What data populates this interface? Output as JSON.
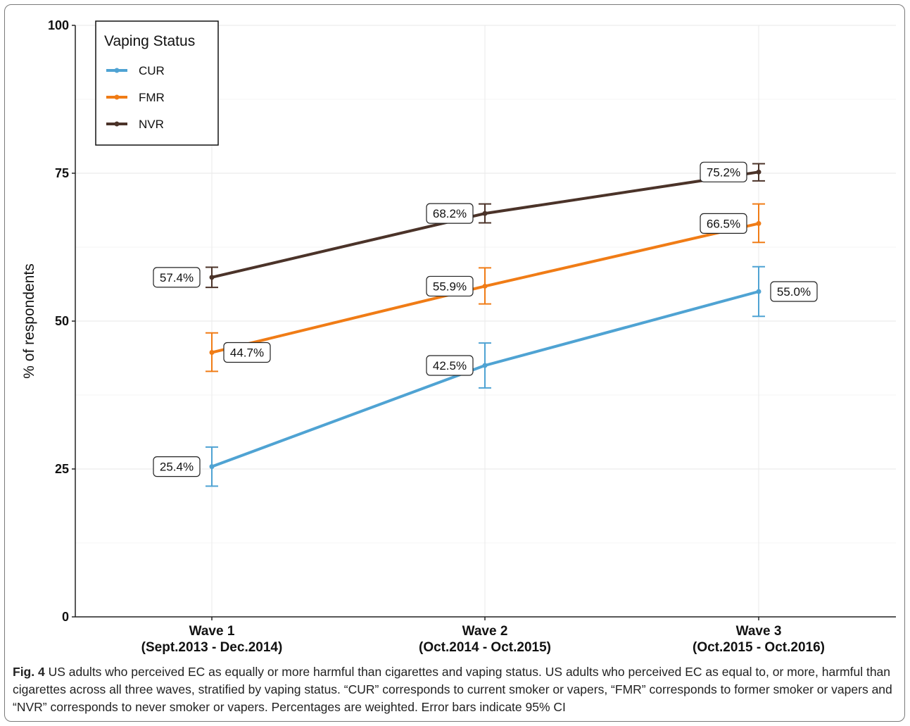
{
  "chart_data": {
    "type": "line",
    "categories": [
      {
        "line1": "Wave 1",
        "line2": "(Sept.2013 - Dec.2014)"
      },
      {
        "line1": "Wave 2",
        "line2": "(Oct.2014 - Oct.2015)"
      },
      {
        "line1": "Wave 3",
        "line2": "(Oct.2015 - Oct.2016)"
      }
    ],
    "ylabel": "% of respondents",
    "ylim": [
      0,
      100
    ],
    "yticks": [
      0,
      25,
      50,
      75,
      100
    ],
    "grid": true,
    "legend": {
      "title": "Vaping Status",
      "position": "top-left"
    },
    "series": [
      {
        "name": "CUR",
        "color": "#4fa3d3",
        "values": [
          25.4,
          42.5,
          55.0
        ],
        "ci_low": [
          22.1,
          38.7,
          50.8
        ],
        "ci_high": [
          28.7,
          46.3,
          59.2
        ],
        "labels": [
          "25.4%",
          "42.5%",
          "55.0%"
        ],
        "label_side": [
          "left",
          "left",
          "right"
        ]
      },
      {
        "name": "FMR",
        "color": "#f07c16",
        "values": [
          44.7,
          55.9,
          66.5
        ],
        "ci_low": [
          41.5,
          52.9,
          63.3
        ],
        "ci_high": [
          48.0,
          59.0,
          69.8
        ],
        "labels": [
          "44.7%",
          "55.9%",
          "66.5%"
        ],
        "label_side": [
          "right",
          "left",
          "left"
        ]
      },
      {
        "name": "NVR",
        "color": "#4b3329",
        "values": [
          57.4,
          68.2,
          75.2
        ],
        "ci_low": [
          55.7,
          66.6,
          73.7
        ],
        "ci_high": [
          59.1,
          69.8,
          76.6
        ],
        "labels": [
          "57.4%",
          "68.2%",
          "75.2%"
        ],
        "label_side": [
          "left",
          "left",
          "left"
        ]
      }
    ]
  },
  "caption": {
    "label": "Fig. 4",
    "text": " US adults who perceived EC as equally or more harmful than cigarettes and vaping status. US adults who perceived EC as equal to, or more, harmful than cigarettes across all three waves, stratified by vaping status. “CUR” corresponds to current smoker or vapers, “FMR” corresponds to former smoker or vapers and “NVR” corresponds to never smoker or vapers. Percentages are weighted. Error bars indicate 95% CI"
  }
}
